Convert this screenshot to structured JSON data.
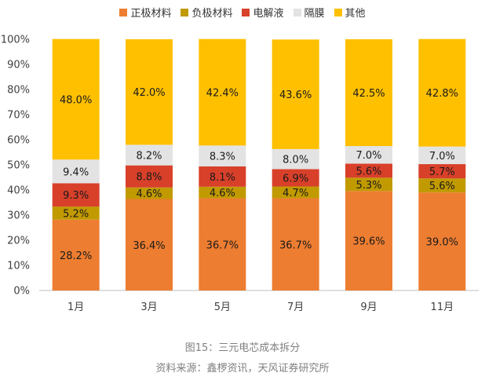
{
  "chart_data": {
    "type": "bar",
    "stacked": true,
    "categories": [
      "1月",
      "3月",
      "5月",
      "7月",
      "9月",
      "11月"
    ],
    "series": [
      {
        "name": "正极材料",
        "color": "#ED7D31",
        "values": [
          28.2,
          36.4,
          36.7,
          36.7,
          39.6,
          39.0
        ],
        "labels": [
          "28.2%",
          "36.4%",
          "36.7%",
          "36.7%",
          "39.6%",
          "39.0%"
        ]
      },
      {
        "name": "负极材料",
        "color": "#C19A00",
        "values": [
          5.2,
          4.6,
          4.6,
          4.7,
          5.3,
          5.6
        ],
        "labels": [
          "5.2%",
          "4.6%",
          "4.6%",
          "4.7%",
          "5.3%",
          "5.6%"
        ]
      },
      {
        "name": "电解液",
        "color": "#D8402A",
        "values": [
          9.3,
          8.8,
          8.1,
          6.9,
          5.6,
          5.7
        ],
        "labels": [
          "9.3%",
          "8.8%",
          "8.1%",
          "6.9%",
          "5.6%",
          "5.7%"
        ]
      },
      {
        "name": "隔膜",
        "color": "#E3E3E3",
        "values": [
          9.4,
          8.2,
          8.3,
          8.0,
          7.0,
          7.0
        ],
        "labels": [
          "9.4%",
          "8.2%",
          "8.3%",
          "8.0%",
          "7.0%",
          "7.0%"
        ]
      },
      {
        "name": "其他",
        "color": "#FFC000",
        "values": [
          48.0,
          42.0,
          42.4,
          43.6,
          42.5,
          42.8
        ],
        "labels": [
          "48.0%",
          "42.0%",
          "42.4%",
          "43.6%",
          "42.5%",
          "42.8%"
        ]
      }
    ],
    "yticks": [
      "0%",
      "10%",
      "20%",
      "30%",
      "40%",
      "50%",
      "60%",
      "70%",
      "80%",
      "90%",
      "100%"
    ],
    "ylim": [
      0,
      100
    ],
    "legend_position": "top",
    "grid": false
  },
  "caption": "图15：三元电芯成本拆分",
  "source": "资料来源：鑫椤资讯，天风证券研究所"
}
